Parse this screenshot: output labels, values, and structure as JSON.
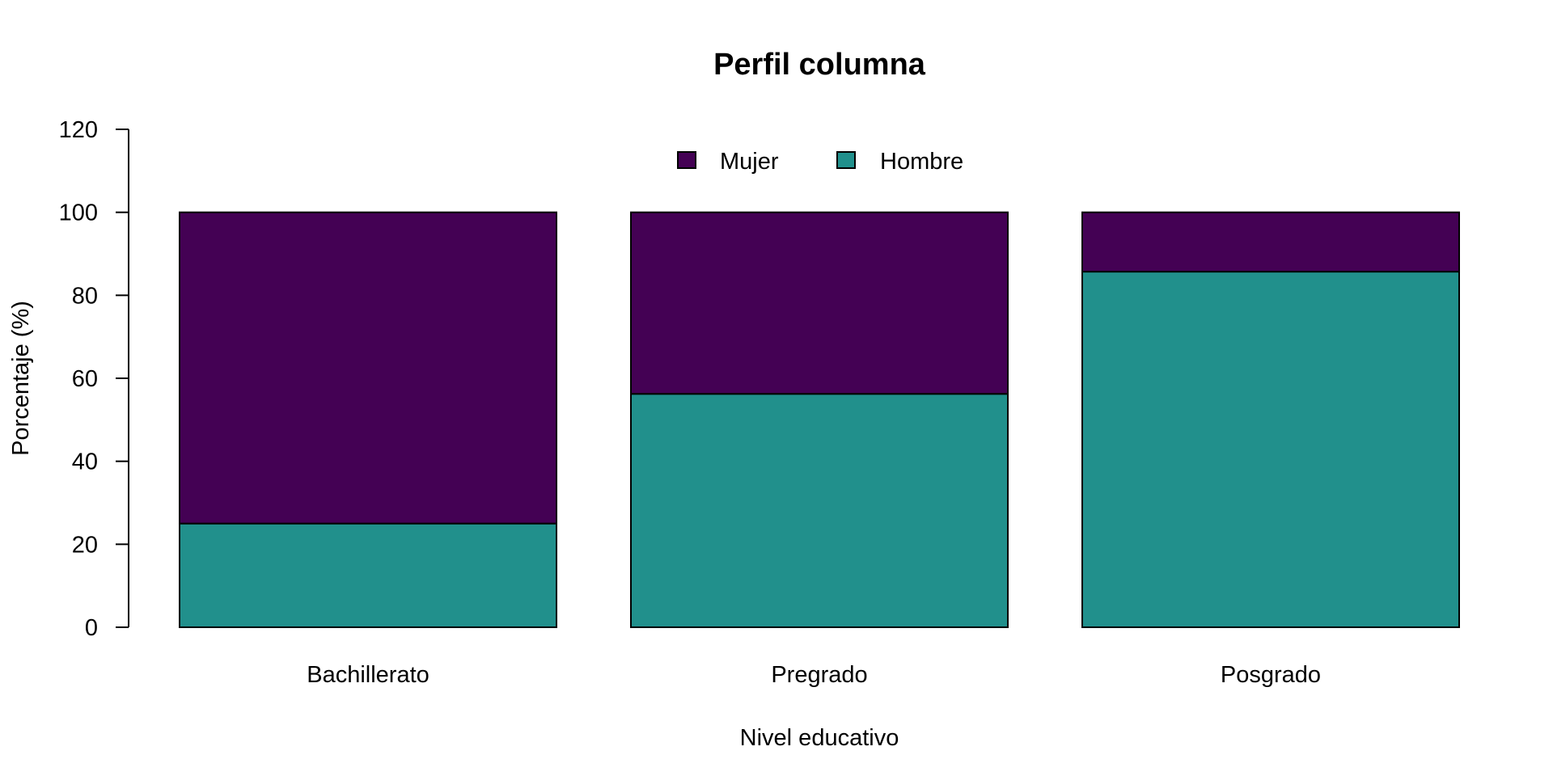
{
  "chart_data": {
    "type": "bar",
    "stacked": true,
    "title": "Perfil columna",
    "xlabel": "Nivel educativo",
    "ylabel": "Porcentaje (%)",
    "categories": [
      "Bachillerato",
      "Pregrado",
      "Posgrado"
    ],
    "ylim": [
      0,
      120
    ],
    "yticks": [
      0,
      20,
      40,
      60,
      80,
      100,
      120
    ],
    "grid": false,
    "legend_position": "top-center",
    "series": [
      {
        "name": "Hombre",
        "color": "#21908C",
        "values": [
          25,
          56.25,
          85.7
        ]
      },
      {
        "name": "Mujer",
        "color": "#440154",
        "values": [
          75,
          43.75,
          14.3
        ]
      }
    ],
    "legend": [
      {
        "name": "Mujer",
        "color": "#440154"
      },
      {
        "name": "Hombre",
        "color": "#21908C"
      }
    ]
  }
}
